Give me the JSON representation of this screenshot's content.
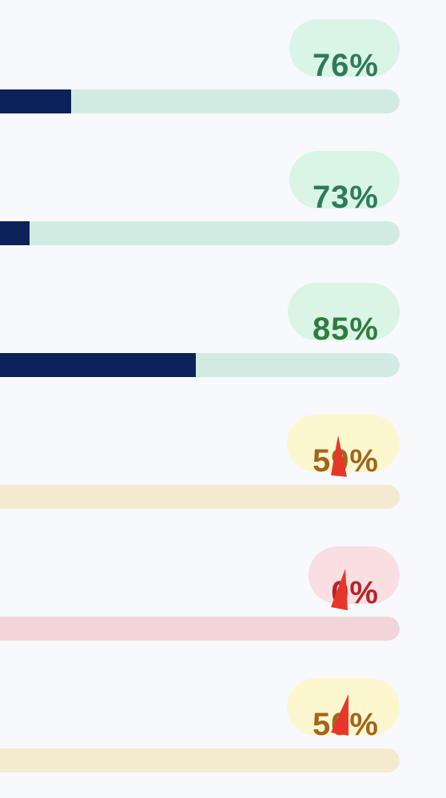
{
  "rows": [
    {
      "label": "76%",
      "fill_fraction": 0.21,
      "badge_color": "#d9f5e6",
      "text_color": "#2e7b5b",
      "track_color": "#d2ebe2",
      "cursor": false
    },
    {
      "label": "73%",
      "fill_fraction": 0.11,
      "badge_color": "#d9f5e6",
      "text_color": "#2e7b5b",
      "track_color": "#d2ebe2",
      "cursor": false
    },
    {
      "label": "85%",
      "fill_fraction": 0.51,
      "badge_color": "#daf5e5",
      "text_color": "#2e7d3f",
      "track_color": "#d2ebe2",
      "cursor": false
    },
    {
      "label": "59%",
      "fill_fraction": 0,
      "badge_color": "#fdf7cf",
      "text_color": "#a0661b",
      "track_color": "#f4ead0",
      "cursor": true
    },
    {
      "label": "0%",
      "fill_fraction": 0,
      "badge_color": "#f9dfe1",
      "text_color": "#b6242b",
      "track_color": "#f2d5d8",
      "cursor": true
    },
    {
      "label": "50%",
      "fill_fraction": 0,
      "badge_color": "#fdf7cf",
      "text_color": "#a0661b",
      "track_color": "#f4ead0",
      "cursor": true
    }
  ],
  "fill_color": "#0d2159",
  "cursor_color": "#e8372a",
  "cursor_icon": "pointer-arrow-icon"
}
